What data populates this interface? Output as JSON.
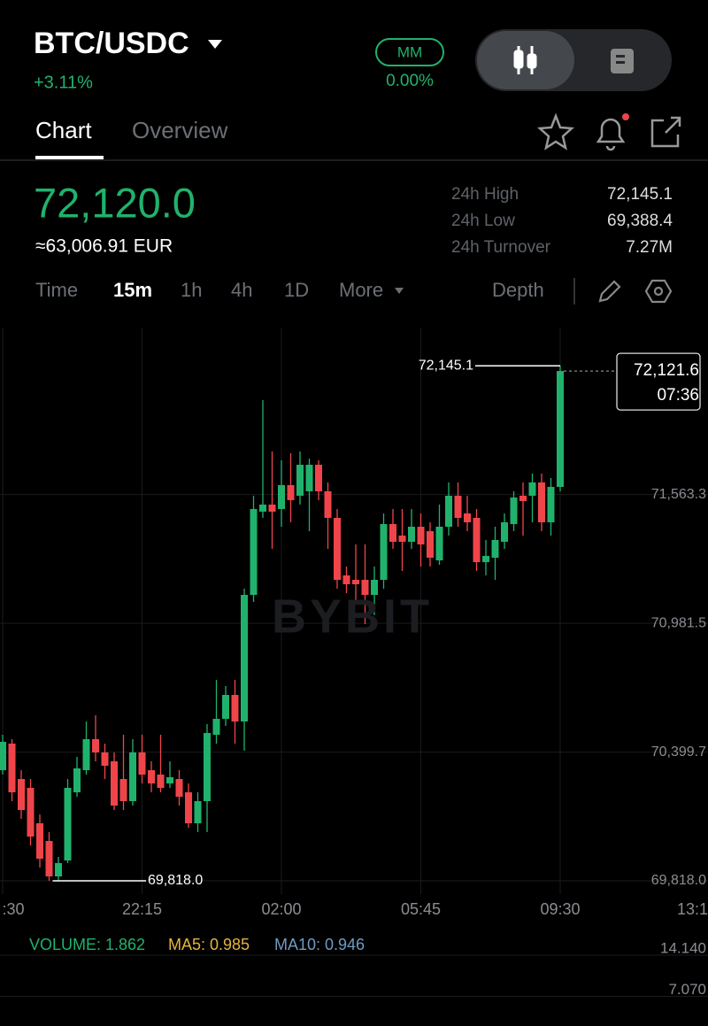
{
  "header": {
    "pair": "BTC/USDC",
    "change": "+3.11%",
    "mm_badge": "MM",
    "mm_value": "0.00%"
  },
  "tabs": [
    "Chart",
    "Overview"
  ],
  "price": {
    "last": "72,120.0",
    "converted": "≈63,006.91 EUR"
  },
  "stats": [
    {
      "label": "24h High",
      "value": "72,145.1"
    },
    {
      "label": "24h Low",
      "value": "69,388.4"
    },
    {
      "label": "24h Turnover",
      "value": "7.27M"
    }
  ],
  "intervals": [
    "Time",
    "15m",
    "1h",
    "4h",
    "1D",
    "More"
  ],
  "depth": "Depth",
  "watermark": "BYBIT",
  "chart_data": {
    "type": "candlestick",
    "categories": [
      ":30",
      null,
      null,
      null,
      null,
      null,
      null,
      null,
      null,
      null,
      null,
      null,
      null,
      null,
      null,
      "22:15",
      null,
      null,
      null,
      null,
      null,
      null,
      null,
      null,
      null,
      null,
      null,
      null,
      null,
      null,
      "02:00",
      null,
      null,
      null,
      null,
      null,
      null,
      null,
      null,
      null,
      null,
      null,
      null,
      null,
      null,
      "05:45",
      null,
      null,
      null,
      null,
      null,
      null,
      null,
      null,
      null,
      null,
      null,
      null,
      null,
      null,
      "09:30"
    ],
    "right_edge_tick": "13:1",
    "open": [
      70318,
      70438,
      70278,
      70238,
      70078,
      69998,
      69838,
      69910,
      70218,
      70318,
      70458,
      70398,
      70358,
      70278,
      70178,
      70398,
      70318,
      70298,
      70258,
      70278,
      70218,
      70078,
      70178,
      70478,
      70550,
      70658,
      70538,
      71110,
      71486,
      71518,
      71498,
      71606,
      71558,
      71578,
      71698,
      71578,
      71458,
      71198,
      71178,
      71178,
      71110,
      71178,
      71430,
      71378,
      71350,
      71418,
      71398,
      71266,
      71418,
      71558,
      71478,
      71458,
      71258,
      71278,
      71350,
      71430,
      71558,
      71558,
      71618,
      71438,
      71598
    ],
    "high": [
      70478,
      70458,
      70318,
      70278,
      70118,
      70038,
      69926,
      70278,
      70378,
      70538,
      70566,
      70438,
      70398,
      70478,
      70458,
      70478,
      70358,
      70478,
      70358,
      70318,
      70258,
      70218,
      70526,
      70726,
      70698,
      70726,
      71138,
      71558,
      71990,
      71758,
      71718,
      71750,
      71758,
      71726,
      71718,
      71618,
      71498,
      71238,
      71338,
      71338,
      71238,
      71478,
      71498,
      71498,
      71498,
      71478,
      71438,
      71518,
      71618,
      71618,
      71558,
      71498,
      71358,
      71418,
      71478,
      71578,
      71618,
      71658,
      71658,
      71638,
      72145.1
    ],
    "low": [
      70298,
      70178,
      70098,
      69978,
      69878,
      69818,
      69818,
      69898,
      70198,
      70298,
      70358,
      70278,
      70138,
      70138,
      70158,
      70258,
      70218,
      70218,
      70238,
      70158,
      70058,
      70038,
      70038,
      70438,
      70518,
      70438,
      70406,
      71078,
      71458,
      71318,
      71418,
      71438,
      71518,
      71398,
      71538,
      71318,
      71138,
      71118,
      71078,
      70978,
      71018,
      71138,
      71318,
      71218,
      71318,
      71238,
      71238,
      71246,
      71378,
      71418,
      71398,
      71218,
      71198,
      71178,
      71318,
      71398,
      71378,
      71438,
      71398,
      71378,
      71578
    ],
    "close": [
      70446,
      70218,
      70138,
      70018,
      69918,
      69838,
      69898,
      70238,
      70326,
      70458,
      70398,
      70338,
      70158,
      70178,
      70398,
      70298,
      70258,
      70238,
      70286,
      70198,
      70078,
      70178,
      70486,
      70550,
      70658,
      70538,
      71110,
      71498,
      71518,
      71486,
      71606,
      71538,
      71698,
      71698,
      71578,
      71458,
      71178,
      71158,
      71158,
      71110,
      71178,
      71430,
      71350,
      71350,
      71418,
      71338,
      71278,
      71418,
      71558,
      71458,
      71438,
      71258,
      71286,
      71358,
      71438,
      71550,
      71534,
      71618,
      71438,
      71598,
      72121.6
    ],
    "up_color": "#20b26c",
    "down_color": "#ef454a",
    "ylim": [
      69758,
      72318
    ],
    "yticks": [
      {
        "value": 69818.0,
        "label": "69,818.0"
      },
      {
        "value": 70399.7,
        "label": "70,399.7"
      },
      {
        "value": 70981.5,
        "label": "70,981.5"
      },
      {
        "value": 71563.3,
        "label": "71,563.3"
      }
    ],
    "grid": true,
    "max_marker": {
      "value": 72145.1,
      "label": "72,145.1"
    },
    "min_marker": {
      "value": 69818.0,
      "label": "69,818.0"
    },
    "current": {
      "value": 72121.6,
      "label": "72,121.6",
      "countdown": "07:36"
    }
  },
  "volume": {
    "volume": "VOLUME: 1.862",
    "ma5": "MA5: 0.985",
    "ma10": "MA10: 0.946",
    "yticks": [
      {
        "value": 14.14,
        "label": "14.140"
      },
      {
        "value": 7.07,
        "label": "7.070"
      }
    ]
  }
}
